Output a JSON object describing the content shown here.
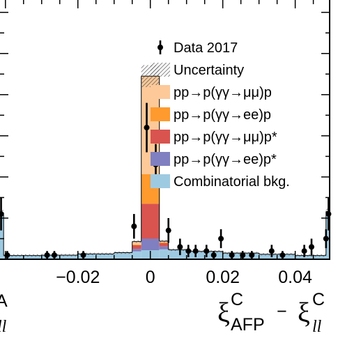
{
  "chart_data": {
    "type": "histogram",
    "xlabel_main": "ξ",
    "xlabel_sup1": "C",
    "xlabel_sub1": "AFP",
    "xlabel_minus": "−",
    "xlabel_sup2": "C",
    "xlabel_sub2": "ll",
    "left_cut_text": "A",
    "left_cut_text2": "ll",
    "xlim": [
      -0.0415,
      0.0495
    ],
    "ylim": [
      0,
      63
    ],
    "x_ticks": [
      {
        "value": -0.02,
        "label": "−0.02"
      },
      {
        "value": 0,
        "label": "0"
      },
      {
        "value": 0.02,
        "label": "0.02"
      },
      {
        "value": 0.04,
        "label": "0.04"
      }
    ],
    "legend": [
      {
        "key": "data",
        "label": "Data 2017"
      },
      {
        "key": "uncertainty",
        "label": "Uncertainty"
      },
      {
        "key": "mumu_p",
        "label": "pp→p(γγ→μμ)p",
        "color": "#fdc999"
      },
      {
        "key": "ee_p",
        "label": "pp→p(γγ→ee)p",
        "color": "#fe9a2e"
      },
      {
        "key": "mumu_pstar",
        "label": "pp→p(γγ→μμ)p*",
        "color": "#d9534f"
      },
      {
        "key": "ee_pstar",
        "label": "pp→p(γγ→ee)p*",
        "color": "#7f7fc2"
      },
      {
        "key": "combinatorial",
        "label": "Combinatorial bkg.",
        "color": "#9ecae1"
      }
    ],
    "bins": [
      {
        "lo": -0.0415,
        "hi": -0.0405,
        "comb": 11.3,
        "ee_pstar": 0,
        "mumu_pstar": 0,
        "ee_p": 0,
        "mumu_p": 0
      },
      {
        "lo": -0.0405,
        "hi": -0.03,
        "comb": 0.9,
        "ee_pstar": 0,
        "mumu_pstar": 0,
        "ee_p": 0,
        "mumu_p": 0
      },
      {
        "lo": -0.03,
        "hi": -0.02,
        "comb": 1.0,
        "ee_pstar": 0,
        "mumu_pstar": 0,
        "ee_p": 0,
        "mumu_p": 0
      },
      {
        "lo": -0.02,
        "hi": -0.01,
        "comb": 1.3,
        "ee_pstar": 0,
        "mumu_pstar": 0,
        "ee_p": 0,
        "mumu_p": 0
      },
      {
        "lo": -0.01,
        "hi": -0.005,
        "comb": 1.6,
        "ee_pstar": 0,
        "mumu_pstar": 0,
        "ee_p": 0,
        "mumu_p": 0
      },
      {
        "lo": -0.005,
        "hi": -0.0025,
        "comb": 1.9,
        "ee_pstar": 0.6,
        "mumu_pstar": 0.9,
        "ee_p": 0.2,
        "mumu_p": 0.7
      },
      {
        "lo": -0.0025,
        "hi": 0.0025,
        "comb": 2.2,
        "ee_pstar": 2.8,
        "mumu_pstar": 8.5,
        "ee_p": 7.2,
        "mumu_p": 23.8
      },
      {
        "lo": 0.0025,
        "hi": 0.005,
        "comb": 2.4,
        "ee_pstar": 0.7,
        "mumu_pstar": 0.8,
        "ee_p": 0.2,
        "mumu_p": 0.3
      },
      {
        "lo": 0.005,
        "hi": 0.01,
        "comb": 2.3,
        "ee_pstar": 0,
        "mumu_pstar": 0,
        "ee_p": 0,
        "mumu_p": 0
      },
      {
        "lo": 0.01,
        "hi": 0.02,
        "comb": 1.9,
        "ee_pstar": 0,
        "mumu_pstar": 0,
        "ee_p": 0,
        "mumu_p": 0
      },
      {
        "lo": 0.02,
        "hi": 0.03,
        "comb": 1.5,
        "ee_pstar": 0,
        "mumu_pstar": 0,
        "ee_p": 0,
        "mumu_p": 0
      },
      {
        "lo": 0.03,
        "hi": 0.04,
        "comb": 1.2,
        "ee_pstar": 0,
        "mumu_pstar": 0,
        "ee_p": 0,
        "mumu_p": 0
      },
      {
        "lo": 0.04,
        "hi": 0.0485,
        "comb": 0.9,
        "ee_pstar": 0,
        "mumu_pstar": 0,
        "ee_p": 0,
        "mumu_p": 0
      },
      {
        "lo": 0.0485,
        "hi": 0.0495,
        "comb": 11.6,
        "ee_pstar": 0,
        "mumu_pstar": 0,
        "ee_p": 0,
        "mumu_p": 0
      }
    ],
    "data_points": [
      {
        "x": -0.0412,
        "y": 11,
        "err": 4
      },
      {
        "x": -0.0395,
        "y": 1,
        "err": 1
      },
      {
        "x": -0.0285,
        "y": 1,
        "err": 1
      },
      {
        "x": -0.0265,
        "y": 1,
        "err": 1
      },
      {
        "x": -0.0185,
        "y": 1,
        "err": 1
      },
      {
        "x": -0.0045,
        "y": 8,
        "err": 3
      },
      {
        "x": -0.001,
        "y": 32,
        "err": 6
      },
      {
        "x": 0.0015,
        "y": 23,
        "err": 5
      },
      {
        "x": 0.005,
        "y": 7,
        "err": 3
      },
      {
        "x": 0.0082,
        "y": 3,
        "err": 2
      },
      {
        "x": 0.0105,
        "y": 2,
        "err": 1.5
      },
      {
        "x": 0.0125,
        "y": 2,
        "err": 1.5
      },
      {
        "x": 0.0155,
        "y": 2,
        "err": 1.5
      },
      {
        "x": 0.0175,
        "y": 1,
        "err": 1
      },
      {
        "x": 0.0195,
        "y": 5,
        "err": 2.3
      },
      {
        "x": 0.0225,
        "y": 1,
        "err": 1
      },
      {
        "x": 0.0255,
        "y": 1,
        "err": 1
      },
      {
        "x": 0.028,
        "y": 1,
        "err": 1
      },
      {
        "x": 0.0335,
        "y": 2,
        "err": 1.5
      },
      {
        "x": 0.0365,
        "y": 1,
        "err": 1
      },
      {
        "x": 0.0425,
        "y": 2,
        "err": 1.5
      },
      {
        "x": 0.0445,
        "y": 3,
        "err": 2
      },
      {
        "x": 0.0485,
        "y": 5,
        "err": 2.3
      },
      {
        "x": 0.0492,
        "y": 11,
        "err": 4
      }
    ]
  }
}
